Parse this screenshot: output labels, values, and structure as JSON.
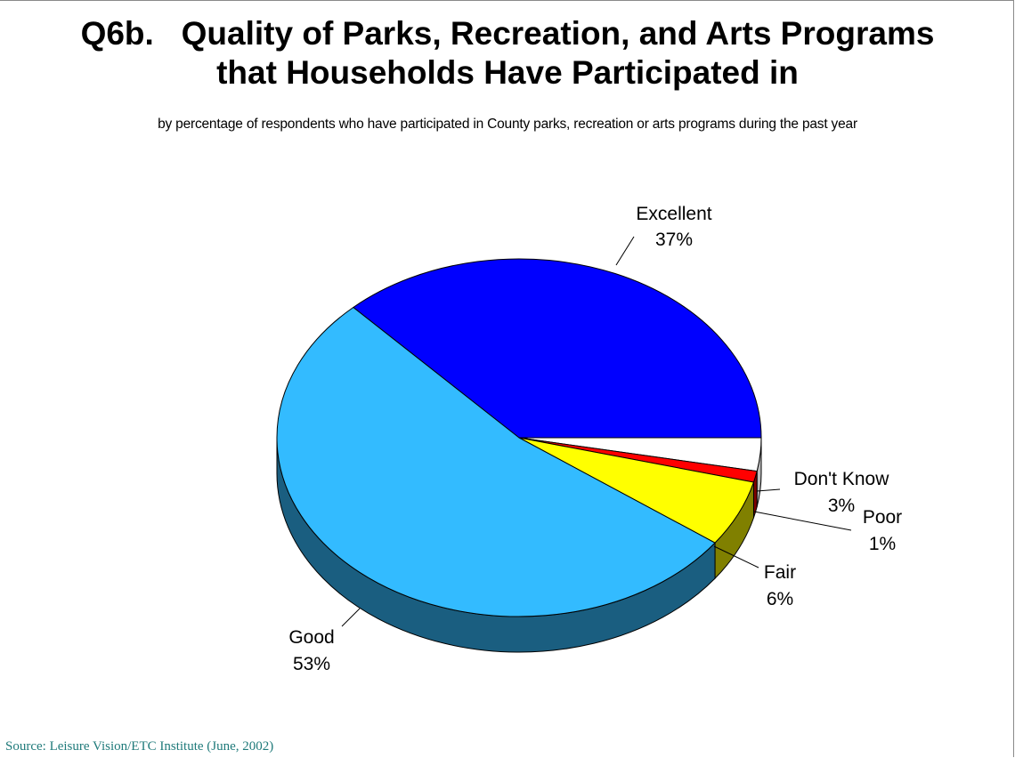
{
  "title_line1": "Q6b.   Quality of Parks, Recreation, and Arts Programs",
  "title_line2": "that Households Have Participated in",
  "subtitle": "by percentage of respondents who have participated in County parks, recreation or arts programs during the past year",
  "source": "Source:  Leisure Vision/ETC Institute (June, 2002)",
  "chart_data": {
    "type": "pie",
    "title": "Q6b.   Quality of Parks, Recreation, and Arts Programs that Households Have Participated in",
    "subtitle": "by percentage of respondents who have participated in County parks, recreation or arts programs during the past year",
    "three_d": true,
    "slices": [
      {
        "label": "Excellent",
        "value": 37,
        "value_label": "37%",
        "color": "#0000ff",
        "side_color": "#000080"
      },
      {
        "label": "Don't Know",
        "value": 3,
        "value_label": "3%",
        "color": "#ffffff",
        "side_color": "#bfbfbf"
      },
      {
        "label": "Poor",
        "value": 1,
        "value_label": "1%",
        "color": "#ff0000",
        "side_color": "#800000"
      },
      {
        "label": "Fair",
        "value": 6,
        "value_label": "6%",
        "color": "#ffff00",
        "side_color": "#808000"
      },
      {
        "label": "Good",
        "value": 53,
        "value_label": "53%",
        "color": "#33bbff",
        "side_color": "#1a5e80"
      }
    ]
  }
}
